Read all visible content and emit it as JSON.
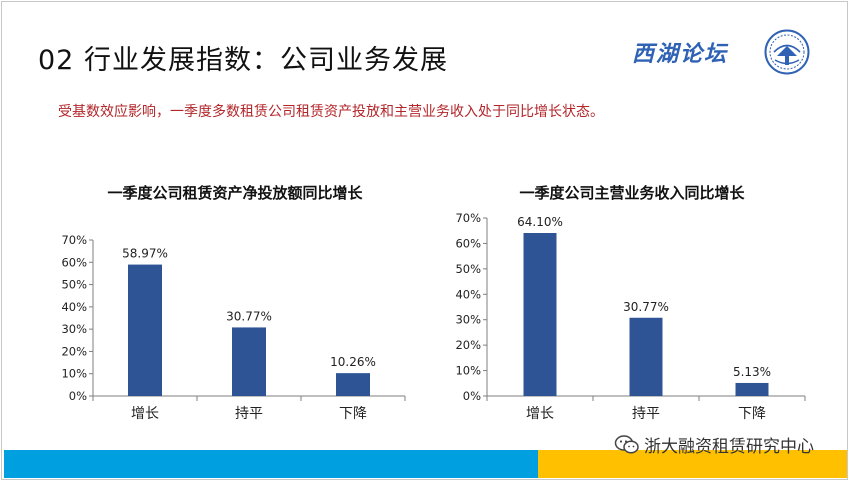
{
  "header": {
    "title": "02 行业发展指数：公司业务发展",
    "brand": "西湖论坛"
  },
  "subtitle": "受基数效应影响，一季度多数租赁公司租赁资产投放和主营业务收入处于同比增长状态。",
  "footer": {
    "watermark": "浙大融资租赁研究中心"
  },
  "colors": {
    "bar": "#2f5496",
    "accent_blue": "#00a0e0",
    "accent_yellow": "#ffc000",
    "subtitle": "#b3262a"
  },
  "chart_data": [
    {
      "type": "bar",
      "title": "一季度公司租赁资产净投放额同比增长",
      "categories": [
        "增长",
        "持平",
        "下降"
      ],
      "values": [
        58.97,
        30.77,
        10.26
      ],
      "data_labels": [
        "58.97%",
        "30.77%",
        "10.26%"
      ],
      "ylim": [
        0,
        70
      ],
      "yticks": [
        "0%",
        "10%",
        "20%",
        "30%",
        "40%",
        "50%",
        "60%",
        "70%"
      ],
      "grid": false,
      "legend": "none"
    },
    {
      "type": "bar",
      "title": "一季度公司主营业务收入同比增长",
      "categories": [
        "增长",
        "持平",
        "下降"
      ],
      "values": [
        64.1,
        30.77,
        5.13
      ],
      "data_labels": [
        "64.10%",
        "30.77%",
        "5.13%"
      ],
      "ylim": [
        0,
        70
      ],
      "yticks": [
        "0%",
        "10%",
        "20%",
        "30%",
        "40%",
        "50%",
        "60%",
        "70%"
      ],
      "grid": false,
      "legend": "none"
    }
  ]
}
